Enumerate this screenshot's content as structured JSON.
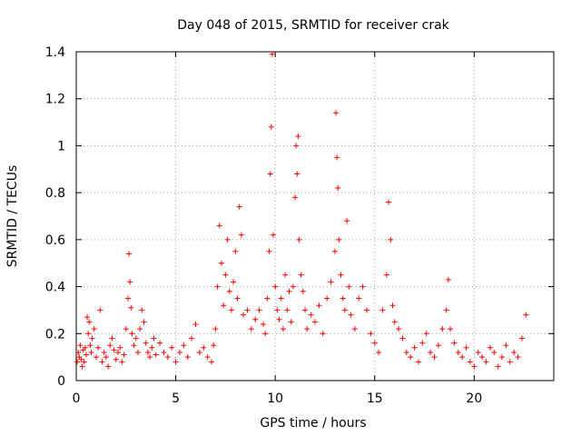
{
  "chart_data": {
    "type": "scatter",
    "title": "Day 048 of 2015, SRMTID for receiver crak",
    "xlabel": "GPS time / hours",
    "ylabel": "SRMTID / TECUs",
    "xlim": [
      0,
      24
    ],
    "ylim": [
      0,
      1.4
    ],
    "xticks": [
      0,
      5,
      10,
      15,
      20
    ],
    "xtick_labels": [
      "0",
      "5",
      "10",
      "15",
      "20"
    ],
    "yticks": [
      0,
      0.2,
      0.4,
      0.6,
      0.8,
      1.0,
      1.2,
      1.4
    ],
    "ytick_labels": [
      "0",
      "0.2",
      "0.4",
      "0.6",
      "0.8",
      "1",
      "1.2",
      "1.4"
    ],
    "grid": true,
    "marker": "+",
    "color": "#ff0000",
    "series": [
      {
        "name": "SRMTID",
        "x": [
          0.05,
          0.1,
          0.15,
          0.2,
          0.25,
          0.3,
          0.35,
          0.4,
          0.45,
          0.5,
          0.55,
          0.6,
          0.65,
          0.7,
          0.75,
          0.8,
          0.9,
          1.0,
          1.1,
          1.2,
          1.3,
          1.4,
          1.5,
          1.6,
          1.7,
          1.8,
          1.9,
          2.0,
          2.1,
          2.2,
          2.3,
          2.4,
          2.5,
          2.6,
          2.65,
          2.7,
          2.75,
          2.8,
          2.9,
          3.0,
          3.1,
          3.2,
          3.3,
          3.4,
          3.5,
          3.6,
          3.7,
          3.8,
          3.9,
          4.0,
          4.2,
          4.4,
          4.6,
          4.8,
          5.0,
          5.2,
          5.4,
          5.6,
          5.8,
          6.0,
          6.2,
          6.4,
          6.6,
          6.8,
          6.9,
          7.0,
          7.1,
          7.2,
          7.3,
          7.4,
          7.5,
          7.6,
          7.7,
          7.8,
          7.9,
          8.0,
          8.1,
          8.2,
          8.3,
          8.4,
          8.6,
          8.8,
          9.0,
          9.2,
          9.4,
          9.5,
          9.6,
          9.7,
          9.75,
          9.8,
          9.85,
          9.9,
          10.0,
          10.1,
          10.2,
          10.3,
          10.4,
          10.5,
          10.6,
          10.7,
          10.8,
          10.9,
          11.0,
          11.05,
          11.1,
          11.15,
          11.2,
          11.3,
          11.4,
          11.5,
          11.6,
          11.8,
          12.0,
          12.2,
          12.4,
          12.6,
          12.8,
          13.0,
          13.05,
          13.1,
          13.15,
          13.2,
          13.3,
          13.4,
          13.5,
          13.6,
          13.7,
          13.8,
          14.0,
          14.2,
          14.4,
          14.6,
          14.8,
          15.0,
          15.2,
          15.4,
          15.6,
          15.7,
          15.8,
          15.9,
          16.0,
          16.2,
          16.4,
          16.6,
          16.8,
          17.0,
          17.2,
          17.4,
          17.6,
          17.8,
          18.0,
          18.2,
          18.4,
          18.6,
          18.7,
          18.8,
          19.0,
          19.2,
          19.4,
          19.6,
          19.8,
          20.0,
          20.2,
          20.4,
          20.6,
          20.8,
          21.0,
          21.2,
          21.4,
          21.6,
          21.8,
          22.0,
          22.2,
          22.4,
          22.6
        ],
        "y": [
          0.08,
          0.12,
          0.1,
          0.15,
          0.09,
          0.06,
          0.13,
          0.08,
          0.14,
          0.11,
          0.27,
          0.2,
          0.25,
          0.15,
          0.12,
          0.18,
          0.22,
          0.1,
          0.14,
          0.3,
          0.08,
          0.12,
          0.1,
          0.06,
          0.15,
          0.18,
          0.13,
          0.09,
          0.12,
          0.14,
          0.08,
          0.11,
          0.22,
          0.35,
          0.54,
          0.42,
          0.31,
          0.2,
          0.15,
          0.18,
          0.12,
          0.22,
          0.3,
          0.25,
          0.16,
          0.12,
          0.1,
          0.14,
          0.18,
          0.11,
          0.16,
          0.12,
          0.1,
          0.14,
          0.08,
          0.12,
          0.15,
          0.1,
          0.18,
          0.24,
          0.12,
          0.14,
          0.1,
          0.08,
          0.15,
          0.22,
          0.4,
          0.66,
          0.5,
          0.32,
          0.45,
          0.6,
          0.38,
          0.3,
          0.42,
          0.55,
          0.35,
          0.74,
          0.62,
          0.28,
          0.3,
          0.22,
          0.26,
          0.3,
          0.24,
          0.2,
          0.35,
          0.55,
          0.88,
          1.08,
          1.39,
          0.62,
          0.4,
          0.3,
          0.26,
          0.35,
          0.22,
          0.45,
          0.3,
          0.38,
          0.25,
          0.4,
          0.78,
          1.0,
          0.88,
          1.04,
          0.6,
          0.45,
          0.38,
          0.3,
          0.22,
          0.28,
          0.25,
          0.32,
          0.2,
          0.35,
          0.42,
          0.55,
          1.14,
          0.95,
          0.82,
          0.6,
          0.45,
          0.35,
          0.3,
          0.68,
          0.4,
          0.28,
          0.22,
          0.35,
          0.4,
          0.3,
          0.2,
          0.16,
          0.12,
          0.3,
          0.45,
          0.76,
          0.6,
          0.32,
          0.25,
          0.22,
          0.18,
          0.12,
          0.1,
          0.14,
          0.08,
          0.16,
          0.2,
          0.12,
          0.1,
          0.15,
          0.22,
          0.3,
          0.43,
          0.22,
          0.16,
          0.12,
          0.1,
          0.14,
          0.08,
          0.06,
          0.12,
          0.1,
          0.08,
          0.14,
          0.12,
          0.06,
          0.1,
          0.15,
          0.08,
          0.12,
          0.1,
          0.18,
          0.28
        ]
      }
    ]
  }
}
